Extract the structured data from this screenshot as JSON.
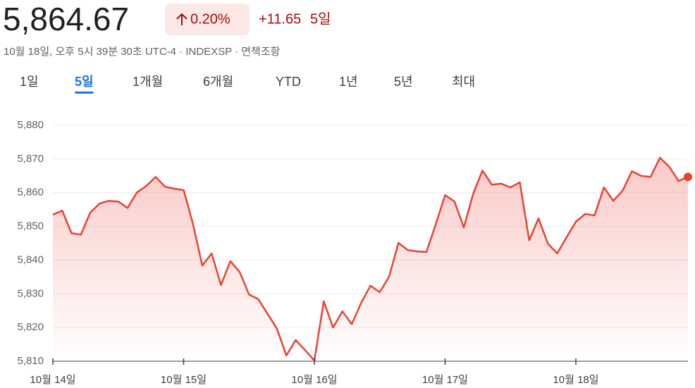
{
  "header": {
    "price": "5,864.67",
    "change_pct": "0.20%",
    "change_abs": "+11.65",
    "period": "5일",
    "subtitle": "10월 18일, 오후 5시 39분 30초 UTC-4 · INDEXSP · 면책조항"
  },
  "tabs": {
    "items": [
      "1일",
      "5일",
      "1개월",
      "6개월",
      "YTD",
      "1년",
      "5년",
      "최대"
    ],
    "selected": 1
  },
  "chart_data": {
    "type": "area",
    "color": "#e94235",
    "grid": true,
    "values": [
      5853.5,
      5854.7,
      5848,
      5847.6,
      5854.1,
      5856.8,
      5857.6,
      5857.4,
      5855.5,
      5860.1,
      5862,
      5864.7,
      5861.8,
      5861.2,
      5860.8,
      5850.7,
      5838.4,
      5842,
      5832.6,
      5839.7,
      5836.5,
      5829.8,
      5828.4,
      5824,
      5819.6,
      5811.7,
      5816.3,
      5813.3,
      5810.2,
      5827.8,
      5820,
      5824.8,
      5821,
      5827.3,
      5832.4,
      5830.5,
      5835.1,
      5845.1,
      5843,
      5842.6,
      5842.4,
      5850.7,
      5859.3,
      5857.4,
      5849.7,
      5859.7,
      5866.6,
      5862.4,
      5862.7,
      5861.6,
      5863.1,
      5845.9,
      5852.4,
      5844.9,
      5842,
      5846.8,
      5851.4,
      5853.7,
      5853.3,
      5861.6,
      5857.6,
      5860.6,
      5866.4,
      5865,
      5864.7,
      5870.4,
      5867.7,
      5863.5,
      5864.7
    ],
    "xlim": [
      0,
      68
    ],
    "xticks": [
      {
        "value": 0,
        "label": "10월 14일"
      },
      {
        "value": 14,
        "label": "10월 15일"
      },
      {
        "value": 28,
        "label": "10월 16일"
      },
      {
        "value": 42,
        "label": "10월 17일"
      },
      {
        "value": 56,
        "label": "10월 18일"
      }
    ],
    "ylim": [
      5810,
      5880
    ],
    "yticks": [
      {
        "value": 5810,
        "label": "5,810"
      },
      {
        "value": 5820,
        "label": "5,820"
      },
      {
        "value": 5830,
        "label": "5,830"
      },
      {
        "value": 5840,
        "label": "5,840"
      },
      {
        "value": 5850,
        "label": "5,850"
      },
      {
        "value": 5860,
        "label": "5,860"
      },
      {
        "value": 5870,
        "label": "5,870"
      },
      {
        "value": 5880,
        "label": "5,880"
      }
    ]
  }
}
